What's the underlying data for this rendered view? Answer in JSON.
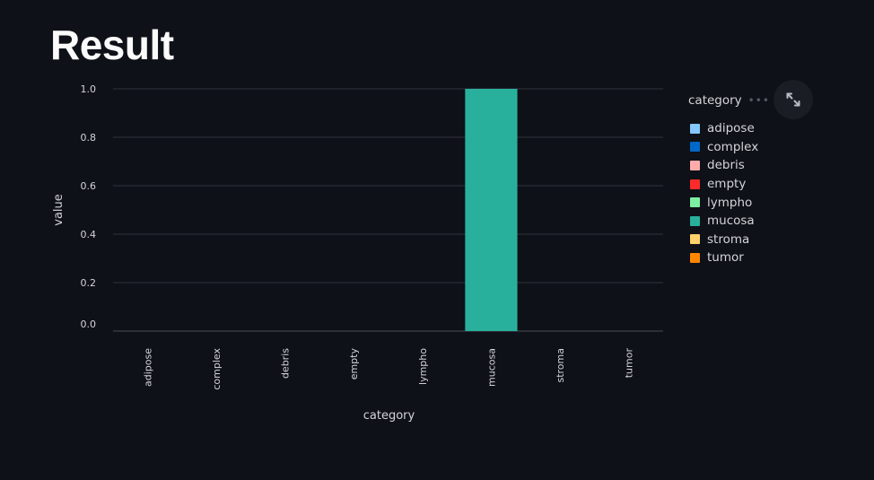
{
  "page": {
    "title": "Result"
  },
  "chart_data": {
    "type": "bar",
    "categories": [
      "adipose",
      "complex",
      "debris",
      "empty",
      "lympho",
      "mucosa",
      "stroma",
      "tumor"
    ],
    "values": [
      0,
      0,
      0,
      0,
      0,
      1.0,
      0,
      0
    ],
    "colors": [
      "#83c9ff",
      "#0068c9",
      "#ffabab",
      "#ff2b2b",
      "#7defa1",
      "#29b09d",
      "#ffd16a",
      "#ff8700"
    ],
    "title": "",
    "xlabel": "category",
    "ylabel": "value",
    "ylim": [
      0,
      1.0
    ],
    "yticks": [
      "0.0",
      "0.2",
      "0.4",
      "0.6",
      "0.8",
      "1.0"
    ],
    "legend_title": "category",
    "legend_position": "right",
    "grid": true
  },
  "icons": {
    "expand": "expand-arrows-icon",
    "menu": "more-horizontal-icon"
  },
  "legend_menu_glyph": "•••"
}
